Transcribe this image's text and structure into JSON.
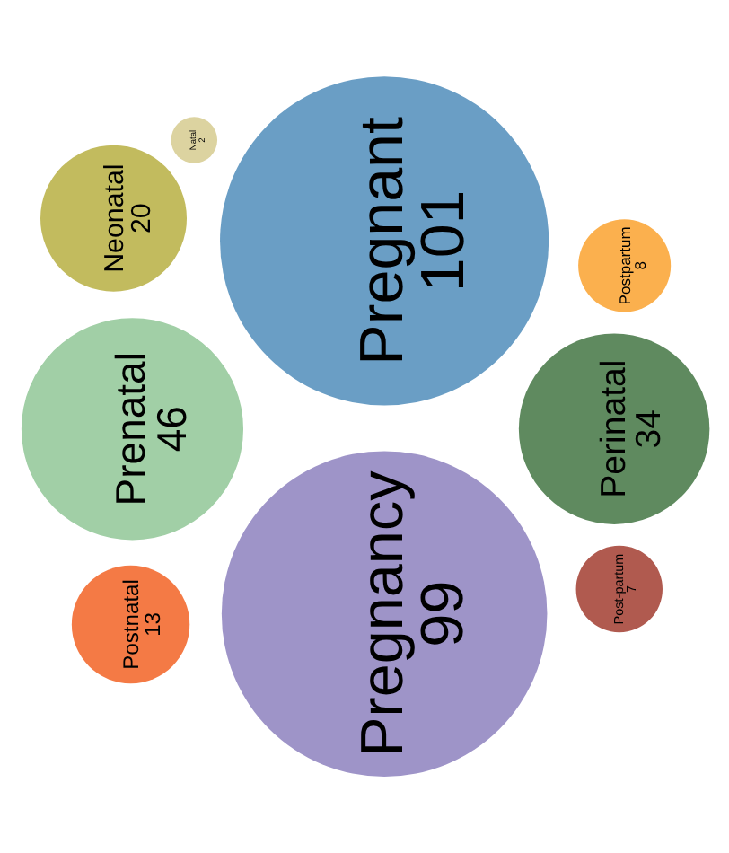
{
  "chart_data": {
    "type": "other",
    "categories": [
      "Pregnant",
      "Pregnancy",
      "Prenatal",
      "Perinatal",
      "Neonatal",
      "Postnatal",
      "Postpartum",
      "Post-partum",
      "Natal"
    ],
    "values": [
      101,
      99,
      46,
      34,
      20,
      13,
      8,
      7,
      2
    ],
    "colors": [
      "#6a9ec5",
      "#9e94c8",
      "#a1cfa6",
      "#5f8a5f",
      "#c2bb5e",
      "#f47a45",
      "#fbb04e",
      "#b05a4f",
      "#dcd3a0"
    ],
    "data_labels": true
  }
}
